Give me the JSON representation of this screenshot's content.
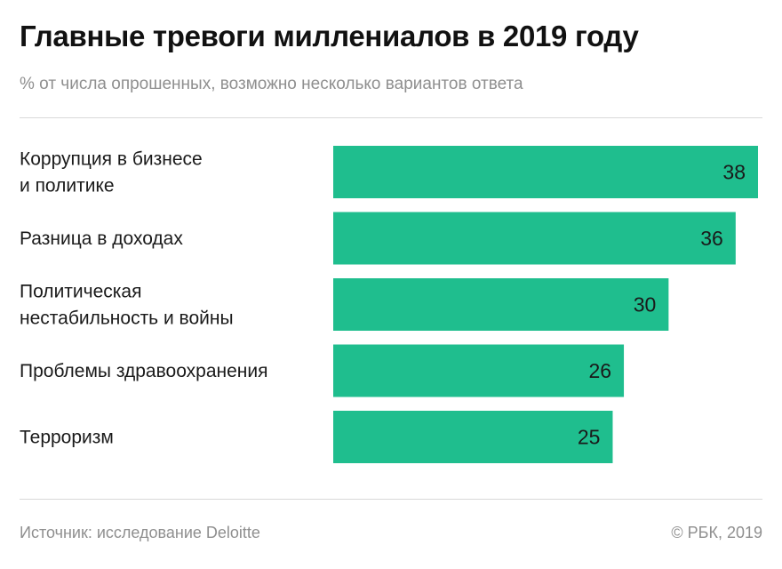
{
  "title": "Главные тревоги миллениалов в 2019 году",
  "subtitle": "% от числа опрошенных, возможно несколько вариантов ответа",
  "footer": {
    "source": "Источник: исследование Deloitte",
    "credit": "© РБК, 2019"
  },
  "colors": {
    "bar": "#1fbe8e",
    "label": "#1a1a1a",
    "value": "#1a1a1a"
  },
  "chart_data": {
    "type": "bar",
    "orientation": "horizontal",
    "categories": [
      [
        "Коррупция в бизнесе",
        "и политике"
      ],
      [
        "Разница в доходах"
      ],
      [
        "Политическая",
        "нестабильность и войны"
      ],
      [
        "Проблемы здравоохранения"
      ],
      [
        "Терроризм"
      ]
    ],
    "values": [
      38,
      36,
      30,
      26,
      25
    ],
    "xlim": [
      0,
      38
    ],
    "grid": false,
    "legend": "none"
  }
}
